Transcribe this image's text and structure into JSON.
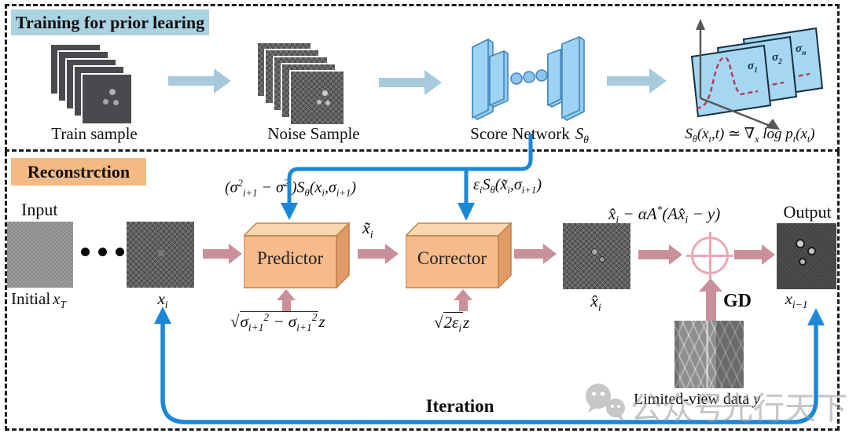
{
  "training": {
    "title": "Training for prior learing",
    "train_sample_label": "Train sample",
    "noise_sample_label": "Noise Sample",
    "score_network_label": "Score Network",
    "score_network_symbol": "S_{θ}",
    "sigma1": "σ_{1}",
    "sigma2": "σ_{2}",
    "sigman": "σ_{n}",
    "equation": "S_{θ}(x_{t},t) ≃ ∇_{x} log p_{t}(x_{t})"
  },
  "reconstruction": {
    "title": "Reconstrction",
    "input_label": "Input",
    "initial_label": "Initial",
    "initial_symbol": "x_{T}",
    "xi_label": "x_{i}",
    "predictor_label": "Predictor",
    "corrector_label": "Corrector",
    "predictor_input_eq": "(σ^{2}_{i+1} − σ^{2}_{i})S_{θ}(x_{i},σ_{i+1})",
    "corrector_input_eq": "ε_{i}S_{θ}(x̃_{i},σ_{i+1})",
    "predictor_noise_eq": "\\sqrt{σ_{i+1}^{2} − σ_{i+1}^{2}}z",
    "corrector_noise_eq": "\\sqrt{2ε_{i}}z",
    "xtilde_label": "x̃_{i}",
    "xhat_label": "x̂_{i}",
    "dc_equation": "x̂_{i} − αA^{*}(Ax̂_{i} − y)",
    "gd_label": "GD",
    "limited_view_label": "Limited-view data",
    "limited_view_symbol": "y",
    "output_label": "Output",
    "output_symbol": "x_{i−1}",
    "iteration_label": "Iteration"
  },
  "watermark": {
    "text1": "公众号",
    "text2": "光行天下"
  },
  "colors": {
    "training_chip_bg": "#abd3e2",
    "recon_chip_bg": "#f3ba85",
    "blue_arrow": "#a6cadc",
    "pink_arrow": "#c9909b",
    "line_blue": "#1b87d9",
    "box_front": "#f6bb8b",
    "box_top": "#fbd6ae",
    "box_side": "#e29a69",
    "plane_fill": "#a6d7f2",
    "curve_red": "#b23a52",
    "oplus_pink": "#eba7b3"
  }
}
